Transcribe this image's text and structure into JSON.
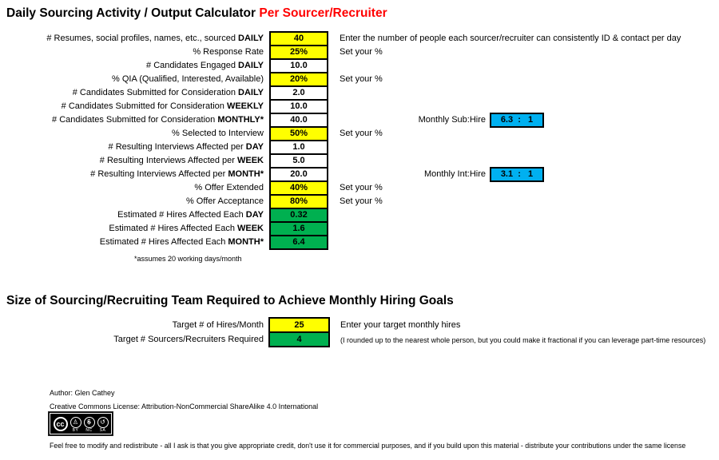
{
  "colors": {
    "input_cell": "#FFFF00",
    "calc_cell": "#FFFFFF",
    "result_cell": "#00B050",
    "ratio_cell": "#00B0F0",
    "title_accent": "#FF0000"
  },
  "header": {
    "title_main": "Daily Sourcing Activity / Output Calculator ",
    "title_accent": "Per Sourcer/Recruiter"
  },
  "calculator": {
    "rows": [
      {
        "label": "# Resumes, social profiles, names, etc., sourced ",
        "label_bold": "DAILY",
        "value": "40",
        "fill": "input_cell",
        "note": "Enter the number of people each sourcer/recruiter can consistently ID & contact per day"
      },
      {
        "label": "% Response Rate",
        "value": "25%",
        "fill": "input_cell",
        "note": "Set your %"
      },
      {
        "label": "# Candidates Engaged ",
        "label_bold": "DAILY",
        "value": "10.0",
        "fill": "calc_cell"
      },
      {
        "label": "% QIA (Qualified, Interested, Available)",
        "value": "20%",
        "fill": "input_cell",
        "note": "Set your %"
      },
      {
        "label": "# Candidates Submitted for Consideration ",
        "label_bold": "DAILY",
        "value": "2.0",
        "fill": "calc_cell"
      },
      {
        "label": "# Candidates Submitted for Consideration ",
        "label_bold": "WEEKLY",
        "value": "10.0",
        "fill": "calc_cell"
      },
      {
        "label": "# Candidates Submitted for Consideration ",
        "label_bold": "MONTHLY*",
        "value": "40.0",
        "fill": "calc_cell",
        "ratio_label": "Monthly Sub:Hire",
        "ratio_value": "6.3  :   1"
      },
      {
        "label": "% Selected to Interview",
        "value": "50%",
        "fill": "input_cell",
        "note": "Set your %"
      },
      {
        "label": "# Resulting Interviews Affected per ",
        "label_bold": "DAY",
        "value": "1.0",
        "fill": "calc_cell"
      },
      {
        "label": "# Resulting Interviews Affected per ",
        "label_bold": "WEEK",
        "value": "5.0",
        "fill": "calc_cell"
      },
      {
        "label": "# Resulting Interviews Affected per ",
        "label_bold": "MONTH*",
        "value": "20.0",
        "fill": "calc_cell",
        "ratio_label": "Monthly Int:Hire",
        "ratio_value": "3.1  :   1"
      },
      {
        "label": "% Offer Extended",
        "value": "40%",
        "fill": "input_cell",
        "note": "Set your %"
      },
      {
        "label": "% Offer Acceptance",
        "value": "80%",
        "fill": "input_cell",
        "note": "Set your %"
      },
      {
        "label": "Estimated # Hires Affected Each ",
        "label_bold": "DAY",
        "value": "0.32",
        "fill": "result_cell"
      },
      {
        "label": "Estimated # Hires Affected Each ",
        "label_bold": "WEEK",
        "value": "1.6",
        "fill": "result_cell"
      },
      {
        "label": "Estimated # Hires Affected Each ",
        "label_bold": "MONTH*",
        "value": "6.4",
        "fill": "result_cell"
      }
    ],
    "footnote": "*assumes 20 working days/month"
  },
  "team_section": {
    "title": "Size of Sourcing/Recruiting Team Required to Achieve Monthly Hiring Goals",
    "rows": [
      {
        "label": "Target # of Hires/Month",
        "value": "25",
        "fill": "input_cell",
        "note": "Enter your target monthly hires"
      },
      {
        "label": "Target # Sourcers/Recruiters Required",
        "value": "4",
        "fill": "result_cell",
        "note": "(I rounded up to the nearest whole person, but you could make it fractional if you can leverage part-time resources)"
      }
    ]
  },
  "footer": {
    "author": "Author: Glen Cathey",
    "license": "Creative Commons License: Attribution-NonCommercial ShareAlike 4.0 International",
    "cc_badge": {
      "logo": "cc",
      "icons": [
        {
          "glyph": "♙",
          "tag": "BY"
        },
        {
          "glyph": "$",
          "tag": "NC"
        },
        {
          "glyph": "↺",
          "tag": "SA"
        }
      ]
    },
    "disclaimer": "Feel free to modify and redistribute - all I ask is that you give appropriate credit, don't use it for commercial purposes, and if you build upon this material - distribute your contributions under the same license"
  }
}
